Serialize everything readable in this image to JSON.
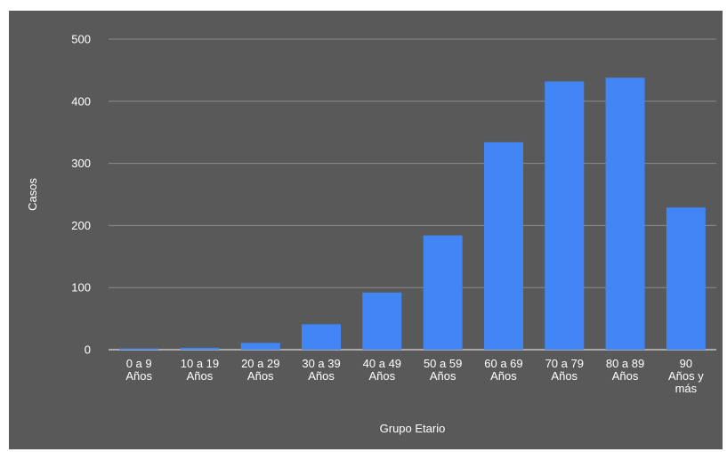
{
  "chart_data": {
    "type": "bar",
    "categories": [
      [
        "0 a 9",
        "Años"
      ],
      [
        "10 a 19",
        "Años"
      ],
      [
        "20 a 29",
        "Años"
      ],
      [
        "30 a 39",
        "Años"
      ],
      [
        "40 a 49",
        "Años"
      ],
      [
        "50 a 59",
        "Años"
      ],
      [
        "60 a 69",
        "Años"
      ],
      [
        "70 a 79",
        "Años"
      ],
      [
        "80 a 89",
        "Años"
      ],
      [
        "90",
        "Años y",
        "más"
      ]
    ],
    "values": [
      2,
      3,
      11,
      41,
      92,
      184,
      334,
      432,
      438,
      229
    ],
    "title": "",
    "xlabel": "Grupo Etario",
    "ylabel": "Casos",
    "ylim": [
      0,
      500
    ],
    "yticks": [
      0,
      100,
      200,
      300,
      400,
      500
    ],
    "grid": true,
    "legend": "none",
    "colors": {
      "background": "#595959",
      "bar": "#4285f4",
      "text": "#ffffff",
      "grid": "#8c8c8c"
    }
  }
}
